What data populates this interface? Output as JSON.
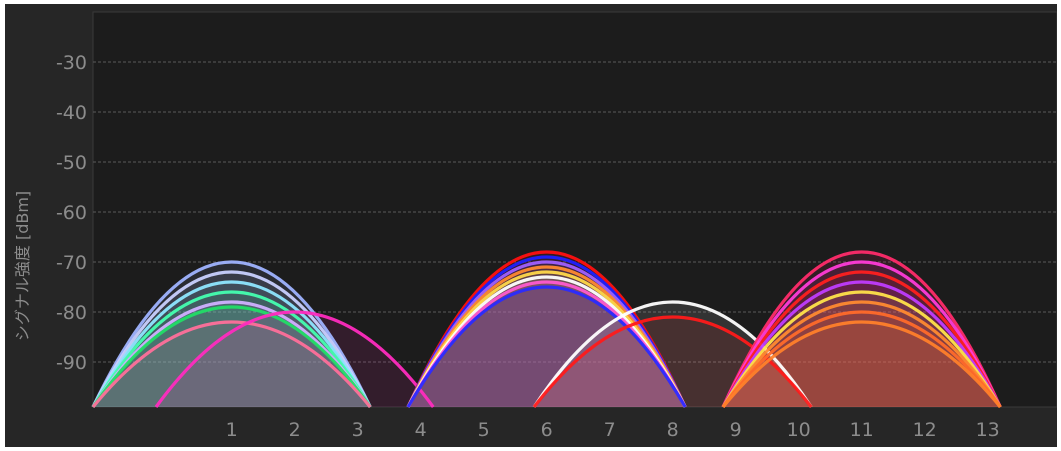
{
  "chart_data": {
    "type": "area",
    "title": "",
    "xlabel": "",
    "ylabel": "シグナル強度 [dBm]",
    "x_ticks": [
      "1",
      "2",
      "3",
      "4",
      "5",
      "6",
      "7",
      "8",
      "9",
      "10",
      "11",
      "12",
      "13"
    ],
    "y_ticks": [
      "-30",
      "-40",
      "-50",
      "-60",
      "-70",
      "-80",
      "-90"
    ],
    "xlim": [
      -1.2,
      14.1
    ],
    "ylim": [
      -99,
      -20
    ],
    "grid": true,
    "series": [
      {
        "center": 1,
        "peak": -70,
        "color": "#9fb3ff"
      },
      {
        "center": 1,
        "peak": -72,
        "color": "#c8d0ff"
      },
      {
        "center": 1,
        "peak": -74,
        "color": "#8ee6ff"
      },
      {
        "center": 1,
        "peak": -76,
        "color": "#45ffb0"
      },
      {
        "center": 1,
        "peak": -78,
        "color": "#d0b0ff"
      },
      {
        "center": 1,
        "peak": -79,
        "color": "#22dd66"
      },
      {
        "center": 1,
        "peak": -82,
        "color": "#ff6f9a"
      },
      {
        "center": 2,
        "peak": -80,
        "color": "#ff2bbf"
      },
      {
        "center": 6,
        "peak": -68,
        "color": "#ff1010"
      },
      {
        "center": 6,
        "peak": -69,
        "color": "#2020ff"
      },
      {
        "center": 6,
        "peak": -70,
        "color": "#a060ff"
      },
      {
        "center": 6,
        "peak": -71,
        "color": "#ff8a30"
      },
      {
        "center": 6,
        "peak": -72,
        "color": "#ffd84a"
      },
      {
        "center": 6,
        "peak": -73,
        "color": "#ffffff"
      },
      {
        "center": 6,
        "peak": -74,
        "color": "#ff5ad0"
      },
      {
        "center": 6,
        "peak": -75,
        "color": "#2a2aff"
      },
      {
        "center": 8,
        "peak": -78,
        "color": "#ffffff"
      },
      {
        "center": 8,
        "peak": -81,
        "color": "#ff1a1a"
      },
      {
        "center": 11,
        "peak": -68,
        "color": "#ff2b6a"
      },
      {
        "center": 11,
        "peak": -70,
        "color": "#ff3bd8"
      },
      {
        "center": 11,
        "peak": -72,
        "color": "#ff2020"
      },
      {
        "center": 11,
        "peak": -74,
        "color": "#c03cff"
      },
      {
        "center": 11,
        "peak": -76,
        "color": "#ffe34a"
      },
      {
        "center": 11,
        "peak": -78,
        "color": "#ff8a30"
      },
      {
        "center": 11,
        "peak": -80,
        "color": "#ff6a2a"
      },
      {
        "center": 11,
        "peak": -82,
        "color": "#ff7f2a"
      }
    ]
  }
}
